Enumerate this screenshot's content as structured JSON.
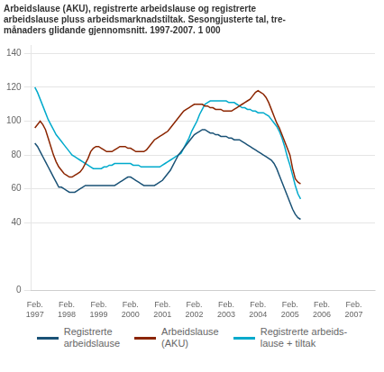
{
  "chart_data": {
    "type": "line",
    "title": "Arbeidslause (AKU), registrerte arbeidslause og registrerte\narbeidslause pluss arbeidsmarknadstiltak. Sesongjusterte tal, tre-\nmånaders glidande gjennomsnitt. 1997-2007. 1 000",
    "x": [
      1997.0833,
      1997.1667,
      1997.25,
      1997.3333,
      1997.4167,
      1997.5,
      1997.5833,
      1997.6667,
      1997.75,
      1997.8333,
      1997.9167,
      1998,
      1998.0833,
      1998.1667,
      1998.25,
      1998.3333,
      1998.4167,
      1998.5,
      1998.5833,
      1998.6667,
      1998.75,
      1998.8333,
      1998.9167,
      1999,
      1999.0833,
      1999.1667,
      1999.25,
      1999.3333,
      1999.4167,
      1999.5,
      1999.5833,
      1999.6667,
      1999.75,
      1999.8333,
      1999.9167,
      2000,
      2000.0833,
      2000.1667,
      2000.25,
      2000.3333,
      2000.4167,
      2000.5,
      2000.5833,
      2000.6667,
      2000.75,
      2000.8333,
      2000.9167,
      2001,
      2001.0833,
      2001.1667,
      2001.25,
      2001.3333,
      2001.4167,
      2001.5,
      2001.5833,
      2001.6667,
      2001.75,
      2001.8333,
      2001.9167,
      2002,
      2002.0833,
      2002.1667,
      2002.25,
      2002.3333,
      2002.4167,
      2002.5,
      2002.5833,
      2002.6667,
      2002.75,
      2002.8333,
      2002.9167,
      2003,
      2003.0833,
      2003.1667,
      2003.25,
      2003.3333,
      2003.4167,
      2003.5,
      2003.5833,
      2003.6667,
      2003.75,
      2003.8333,
      2003.9167,
      2004,
      2004.0833,
      2004.1667,
      2004.25,
      2004.3333,
      2004.4167,
      2004.5,
      2004.5833,
      2004.6667,
      2004.75,
      2004.8333,
      2004.9167,
      2005,
      2005.0833,
      2005.1667,
      2005.25,
      2005.3333,
      2005.4167
    ],
    "series": [
      {
        "name": "Registrerte\narbeidslause",
        "color": "#1a5276",
        "values": [
          87,
          85,
          82,
          79,
          76,
          73,
          70,
          67,
          64,
          61,
          61,
          60,
          59,
          58,
          58,
          58,
          59,
          60,
          61,
          62,
          62,
          62,
          62,
          62,
          62,
          62,
          62,
          62,
          62,
          62,
          62,
          63,
          64,
          65,
          66,
          67,
          67,
          66,
          65,
          64,
          63,
          62,
          62,
          62,
          62,
          62,
          63,
          64,
          65,
          67,
          69,
          71,
          74,
          77,
          80,
          82,
          84,
          86,
          88,
          90,
          92,
          93,
          94,
          95,
          95,
          94,
          93,
          93,
          92,
          92,
          91,
          91,
          91,
          90,
          90,
          89,
          89,
          89,
          88,
          87,
          86,
          85,
          84,
          83,
          82,
          81,
          80,
          79,
          78,
          77,
          75,
          72,
          68,
          64,
          60,
          56,
          52,
          48,
          45,
          43,
          42
        ]
      },
      {
        "name": "Arbeidslause\n(AKU)",
        "color": "#8b2500",
        "values": [
          96,
          98,
          100,
          98,
          95,
          90,
          85,
          80,
          76,
          73,
          71,
          69,
          68,
          67,
          67,
          68,
          69,
          70,
          72,
          75,
          78,
          82,
          84,
          85,
          85,
          84,
          83,
          82,
          82,
          82,
          83,
          84,
          85,
          85,
          85,
          84,
          84,
          83,
          82,
          82,
          82,
          82,
          83,
          85,
          87,
          89,
          90,
          91,
          92,
          93,
          94,
          96,
          98,
          100,
          102,
          104,
          106,
          107,
          108,
          109,
          110,
          110,
          110,
          110,
          109,
          109,
          108,
          108,
          107,
          107,
          107,
          106,
          106,
          106,
          106,
          107,
          108,
          109,
          110,
          111,
          112,
          113,
          115,
          117,
          118,
          117,
          116,
          114,
          111,
          107,
          103,
          99,
          96,
          92,
          88,
          84,
          80,
          72,
          66,
          64,
          63
        ]
      },
      {
        "name": "Registrerte arbeids-\nlause + tiltak",
        "color": "#00aacc",
        "values": [
          120,
          117,
          113,
          109,
          105,
          101,
          98,
          95,
          92,
          90,
          88,
          86,
          84,
          82,
          80,
          79,
          78,
          77,
          76,
          75,
          74,
          73,
          72,
          72,
          72,
          72,
          73,
          73,
          74,
          74,
          75,
          75,
          75,
          75,
          75,
          75,
          75,
          74,
          74,
          74,
          73,
          73,
          73,
          73,
          73,
          73,
          73,
          73,
          74,
          75,
          76,
          77,
          78,
          79,
          80,
          81,
          84,
          87,
          90,
          94,
          97,
          100,
          104,
          107,
          110,
          111,
          112,
          112,
          112,
          112,
          112,
          112,
          112,
          111,
          111,
          111,
          110,
          109,
          108,
          108,
          107,
          107,
          106,
          106,
          105,
          105,
          105,
          104,
          103,
          101,
          99,
          97,
          94,
          90,
          85,
          79,
          74,
          68,
          62,
          57,
          54
        ]
      }
    ],
    "xlim": [
      1996.97,
      2007.75
    ],
    "xticks": [
      {
        "value": 1997.0833,
        "label": "Feb.\n1997"
      },
      {
        "value": 1998.0833,
        "label": "Feb.\n1998"
      },
      {
        "value": 1999.0833,
        "label": "Feb.\n1999"
      },
      {
        "value": 2000.0833,
        "label": "Feb.\n2000"
      },
      {
        "value": 2001.0833,
        "label": "Feb.\n2001"
      },
      {
        "value": 2002.0833,
        "label": "Feb.\n2002"
      },
      {
        "value": 2003.0833,
        "label": "Feb.\n2003"
      },
      {
        "value": 2004.0833,
        "label": "Feb.\n2004"
      },
      {
        "value": 2005.0833,
        "label": "Feb.\n2005"
      },
      {
        "value": 2006.0833,
        "label": "Feb.\n2006"
      },
      {
        "value": 2007.0833,
        "label": "Feb.\n2007"
      }
    ],
    "ylim": [
      0,
      145
    ],
    "yticks": [
      0,
      40,
      60,
      80,
      100,
      120,
      140
    ],
    "grid": "y",
    "legend": "bottom",
    "marker": "none",
    "line_style": "solid"
  }
}
